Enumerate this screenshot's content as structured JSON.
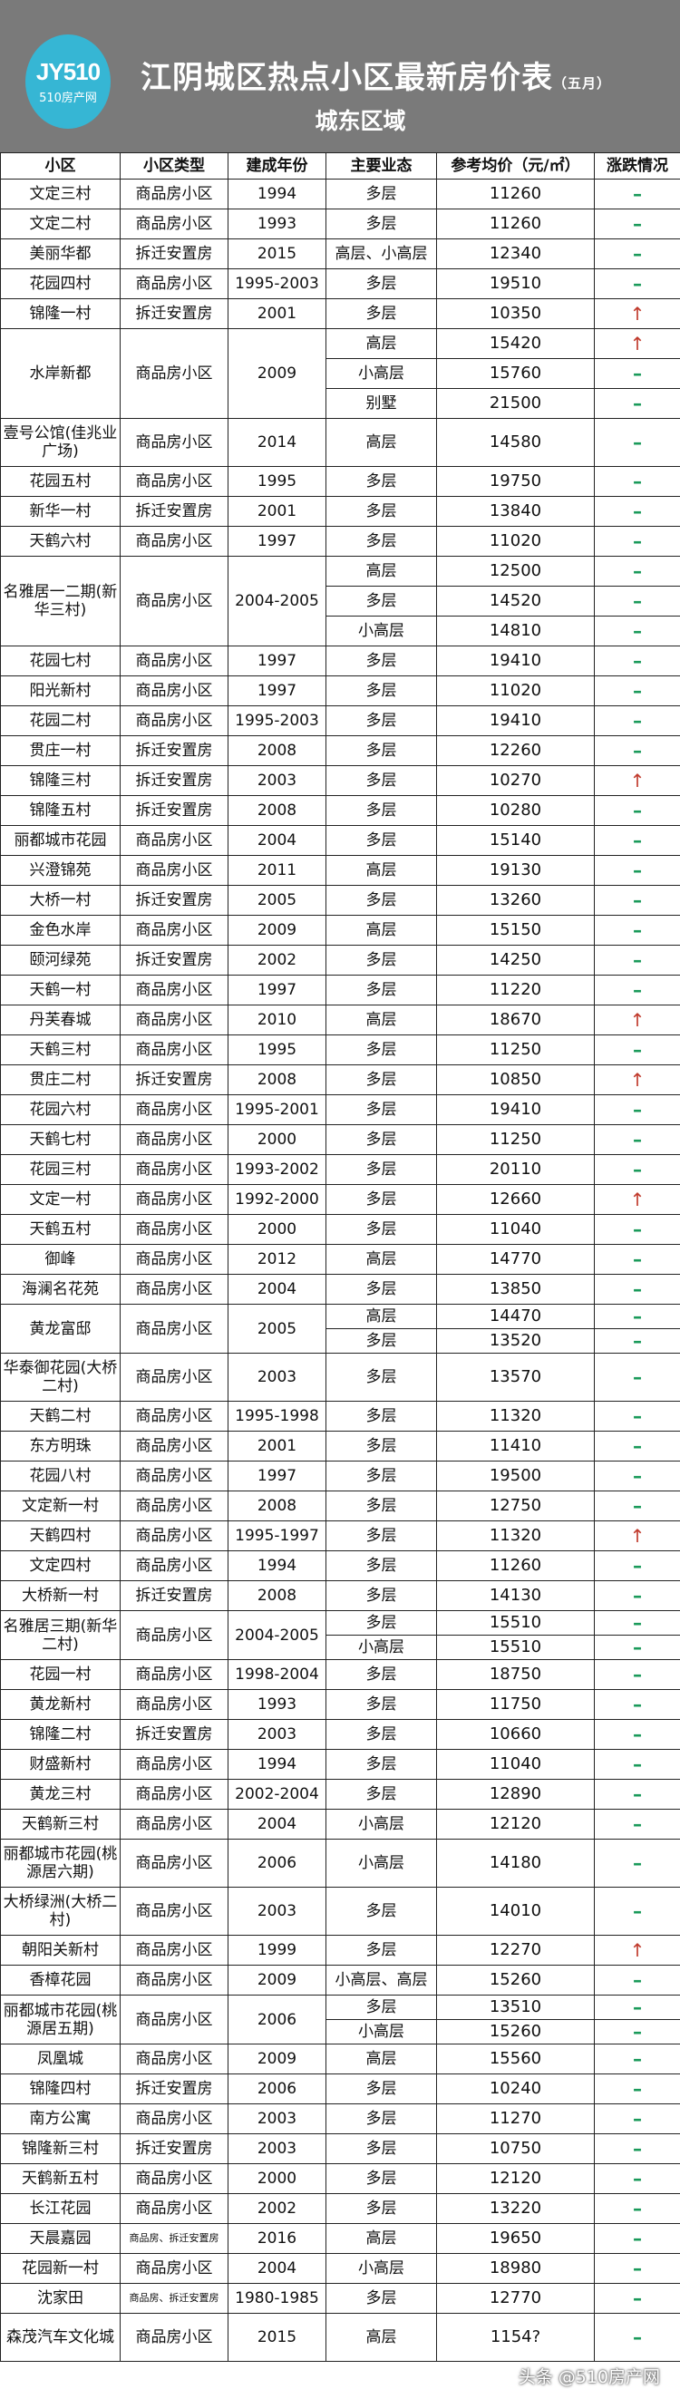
{
  "header": {
    "logo_mark": "JY510",
    "logo_text": "510房产网",
    "title": "江阴城区热点小区最新房价表",
    "title_suffix": "（五月）",
    "subtitle": "城东区域"
  },
  "colors": {
    "header_bg": "#7a7a7a",
    "logo_bg": "#36b6d4",
    "up": "#c0392b",
    "flat": "#1a9a5a"
  },
  "table": {
    "columns": [
      "小区",
      "小区类型",
      "建成年份",
      "主要业态",
      "参考均价（元/㎡）",
      "涨跌情况"
    ],
    "rows": [
      {
        "name": "文定三村",
        "type": "商品房小区",
        "year": "1994",
        "subs": [
          [
            "多层",
            "11260",
            "–"
          ]
        ]
      },
      {
        "name": "文定二村",
        "type": "商品房小区",
        "year": "1993",
        "subs": [
          [
            "多层",
            "11260",
            "–"
          ]
        ]
      },
      {
        "name": "美丽华都",
        "type": "拆迁安置房",
        "year": "2015",
        "subs": [
          [
            "高层、小高层",
            "12340",
            "–"
          ]
        ]
      },
      {
        "name": "花园四村",
        "type": "商品房小区",
        "year": "1995-2003",
        "subs": [
          [
            "多层",
            "19510",
            "–"
          ]
        ]
      },
      {
        "name": "锦隆一村",
        "type": "拆迁安置房",
        "year": "2001",
        "subs": [
          [
            "多层",
            "10350",
            "↑"
          ]
        ]
      },
      {
        "name": "水岸新都",
        "type": "商品房小区",
        "year": "2009",
        "subs": [
          [
            "高层",
            "15420",
            "↑"
          ],
          [
            "小高层",
            "15760",
            "–"
          ],
          [
            "别墅",
            "21500",
            "–"
          ]
        ]
      },
      {
        "name": "壹号公馆(佳兆业广场)",
        "type": "商品房小区",
        "year": "2014",
        "subs": [
          [
            "高层",
            "14580",
            "–"
          ]
        ]
      },
      {
        "name": "花园五村",
        "type": "商品房小区",
        "year": "1995",
        "subs": [
          [
            "多层",
            "19750",
            "–"
          ]
        ]
      },
      {
        "name": "新华一村",
        "type": "拆迁安置房",
        "year": "2001",
        "subs": [
          [
            "多层",
            "13840",
            "–"
          ]
        ]
      },
      {
        "name": "天鹤六村",
        "type": "商品房小区",
        "year": "1997",
        "subs": [
          [
            "多层",
            "11020",
            "–"
          ]
        ]
      },
      {
        "name": "名雅居一二期(新华三村)",
        "type": "商品房小区",
        "year": "2004-2005",
        "subs": [
          [
            "高层",
            "12500",
            "–"
          ],
          [
            "多层",
            "14520",
            "–"
          ],
          [
            "小高层",
            "14810",
            "–"
          ]
        ]
      },
      {
        "name": "花园七村",
        "type": "商品房小区",
        "year": "1997",
        "subs": [
          [
            "多层",
            "19410",
            "–"
          ]
        ]
      },
      {
        "name": "阳光新村",
        "type": "商品房小区",
        "year": "1997",
        "subs": [
          [
            "多层",
            "11020",
            "–"
          ]
        ]
      },
      {
        "name": "花园二村",
        "type": "商品房小区",
        "year": "1995-2003",
        "subs": [
          [
            "多层",
            "19410",
            "–"
          ]
        ]
      },
      {
        "name": "贯庄一村",
        "type": "拆迁安置房",
        "year": "2008",
        "subs": [
          [
            "多层",
            "12260",
            "–"
          ]
        ]
      },
      {
        "name": "锦隆三村",
        "type": "拆迁安置房",
        "year": "2003",
        "subs": [
          [
            "多层",
            "10270",
            "↑"
          ]
        ]
      },
      {
        "name": "锦隆五村",
        "type": "拆迁安置房",
        "year": "2008",
        "subs": [
          [
            "多层",
            "10280",
            "–"
          ]
        ]
      },
      {
        "name": "丽都城市花园",
        "type": "商品房小区",
        "year": "2004",
        "subs": [
          [
            "多层",
            "15140",
            "–"
          ]
        ]
      },
      {
        "name": "兴澄锦苑",
        "type": "商品房小区",
        "year": "2011",
        "subs": [
          [
            "高层",
            "19130",
            "–"
          ]
        ]
      },
      {
        "name": "大桥一村",
        "type": "拆迁安置房",
        "year": "2005",
        "subs": [
          [
            "多层",
            "13260",
            "–"
          ]
        ]
      },
      {
        "name": "金色水岸",
        "type": "商品房小区",
        "year": "2009",
        "subs": [
          [
            "高层",
            "15150",
            "–"
          ]
        ]
      },
      {
        "name": "颐河绿苑",
        "type": "拆迁安置房",
        "year": "2002",
        "subs": [
          [
            "多层",
            "14250",
            "–"
          ]
        ]
      },
      {
        "name": "天鹤一村",
        "type": "商品房小区",
        "year": "1997",
        "subs": [
          [
            "多层",
            "11220",
            "–"
          ]
        ]
      },
      {
        "name": "丹芙春城",
        "type": "商品房小区",
        "year": "2010",
        "subs": [
          [
            "高层",
            "18670",
            "↑"
          ]
        ]
      },
      {
        "name": "天鹤三村",
        "type": "商品房小区",
        "year": "1995",
        "subs": [
          [
            "多层",
            "11250",
            "–"
          ]
        ]
      },
      {
        "name": "贯庄二村",
        "type": "拆迁安置房",
        "year": "2008",
        "subs": [
          [
            "多层",
            "10850",
            "↑"
          ]
        ]
      },
      {
        "name": "花园六村",
        "type": "商品房小区",
        "year": "1995-2001",
        "subs": [
          [
            "多层",
            "19410",
            "–"
          ]
        ]
      },
      {
        "name": "天鹤七村",
        "type": "商品房小区",
        "year": "2000",
        "subs": [
          [
            "多层",
            "11250",
            "–"
          ]
        ]
      },
      {
        "name": "花园三村",
        "type": "商品房小区",
        "year": "1993-2002",
        "subs": [
          [
            "多层",
            "20110",
            "–"
          ]
        ]
      },
      {
        "name": "文定一村",
        "type": "商品房小区",
        "year": "1992-2000",
        "subs": [
          [
            "多层",
            "12660",
            "↑"
          ]
        ]
      },
      {
        "name": "天鹤五村",
        "type": "商品房小区",
        "year": "2000",
        "subs": [
          [
            "多层",
            "11040",
            "–"
          ]
        ]
      },
      {
        "name": "御峰",
        "type": "商品房小区",
        "year": "2012",
        "subs": [
          [
            "高层",
            "14770",
            "–"
          ]
        ]
      },
      {
        "name": "海澜名花苑",
        "type": "商品房小区",
        "year": "2004",
        "subs": [
          [
            "多层",
            "13850",
            "–"
          ]
        ]
      },
      {
        "name": "黄龙富邸",
        "type": "商品房小区",
        "year": "2005",
        "subs": [
          [
            "高层",
            "14470",
            "–"
          ],
          [
            "多层",
            "13520",
            "–"
          ]
        ]
      },
      {
        "name": "华泰御花园(大桥二村)",
        "type": "商品房小区",
        "year": "2003",
        "subs": [
          [
            "多层",
            "13570",
            "–"
          ]
        ]
      },
      {
        "name": "天鹤二村",
        "type": "商品房小区",
        "year": "1995-1998",
        "subs": [
          [
            "多层",
            "11320",
            "–"
          ]
        ]
      },
      {
        "name": "东方明珠",
        "type": "商品房小区",
        "year": "2001",
        "subs": [
          [
            "多层",
            "11410",
            "–"
          ]
        ]
      },
      {
        "name": "花园八村",
        "type": "商品房小区",
        "year": "1997",
        "subs": [
          [
            "多层",
            "19500",
            "–"
          ]
        ]
      },
      {
        "name": "文定新一村",
        "type": "商品房小区",
        "year": "2008",
        "subs": [
          [
            "多层",
            "12750",
            "–"
          ]
        ]
      },
      {
        "name": "天鹤四村",
        "type": "商品房小区",
        "year": "1995-1997",
        "subs": [
          [
            "多层",
            "11320",
            "↑"
          ]
        ]
      },
      {
        "name": "文定四村",
        "type": "商品房小区",
        "year": "1994",
        "subs": [
          [
            "多层",
            "11260",
            "–"
          ]
        ]
      },
      {
        "name": "大桥新一村",
        "type": "拆迁安置房",
        "year": "2008",
        "subs": [
          [
            "多层",
            "14130",
            "–"
          ]
        ]
      },
      {
        "name": "名雅居三期(新华二村)",
        "type": "商品房小区",
        "year": "2004-2005",
        "subs": [
          [
            "多层",
            "15510",
            "–"
          ],
          [
            "小高层",
            "15510",
            "–"
          ]
        ]
      },
      {
        "name": "花园一村",
        "type": "商品房小区",
        "year": "1998-2004",
        "subs": [
          [
            "多层",
            "18750",
            "–"
          ]
        ]
      },
      {
        "name": "黄龙新村",
        "type": "商品房小区",
        "year": "1993",
        "subs": [
          [
            "多层",
            "11750",
            "–"
          ]
        ]
      },
      {
        "name": "锦隆二村",
        "type": "拆迁安置房",
        "year": "2003",
        "subs": [
          [
            "多层",
            "10660",
            "–"
          ]
        ]
      },
      {
        "name": "财盛新村",
        "type": "商品房小区",
        "year": "1994",
        "subs": [
          [
            "多层",
            "11040",
            "–"
          ]
        ]
      },
      {
        "name": "黄龙三村",
        "type": "商品房小区",
        "year": "2002-2004",
        "subs": [
          [
            "多层",
            "12890",
            "–"
          ]
        ]
      },
      {
        "name": "天鹤新三村",
        "type": "商品房小区",
        "year": "2004",
        "subs": [
          [
            "小高层",
            "12120",
            "–"
          ]
        ]
      },
      {
        "name": "丽都城市花园(桃源居六期)",
        "type": "商品房小区",
        "year": "2006",
        "subs": [
          [
            "小高层",
            "14180",
            "–"
          ]
        ]
      },
      {
        "name": "大桥绿洲(大桥二村)",
        "type": "商品房小区",
        "year": "2003",
        "subs": [
          [
            "多层",
            "14010",
            "–"
          ]
        ]
      },
      {
        "name": "朝阳关新村",
        "type": "商品房小区",
        "year": "1999",
        "subs": [
          [
            "多层",
            "12270",
            "↑"
          ]
        ]
      },
      {
        "name": "香樟花园",
        "type": "商品房小区",
        "year": "2009",
        "subs": [
          [
            "小高层、高层",
            "15260",
            "–"
          ]
        ]
      },
      {
        "name": "丽都城市花园(桃源居五期)",
        "type": "商品房小区",
        "year": "2006",
        "subs": [
          [
            "多层",
            "13510",
            "–"
          ],
          [
            "小高层",
            "15260",
            "–"
          ]
        ]
      },
      {
        "name": "凤凰城",
        "type": "商品房小区",
        "year": "2009",
        "subs": [
          [
            "高层",
            "15560",
            "–"
          ]
        ]
      },
      {
        "name": "锦隆四村",
        "type": "拆迁安置房",
        "year": "2006",
        "subs": [
          [
            "多层",
            "10240",
            "–"
          ]
        ]
      },
      {
        "name": "南方公寓",
        "type": "商品房小区",
        "year": "2003",
        "subs": [
          [
            "多层",
            "11270",
            "–"
          ]
        ]
      },
      {
        "name": "锦隆新三村",
        "type": "拆迁安置房",
        "year": "2003",
        "subs": [
          [
            "多层",
            "10750",
            "–"
          ]
        ]
      },
      {
        "name": "天鹤新五村",
        "type": "商品房小区",
        "year": "2000",
        "subs": [
          [
            "多层",
            "12120",
            "–"
          ]
        ]
      },
      {
        "name": "长江花园",
        "type": "商品房小区",
        "year": "2002",
        "subs": [
          [
            "多层",
            "13220",
            "–"
          ]
        ]
      },
      {
        "name": "天晨嘉园",
        "type": "商品房、拆迁安置房",
        "year": "2016",
        "subs": [
          [
            "高层",
            "19650",
            "–"
          ]
        ]
      },
      {
        "name": "花园新一村",
        "type": "商品房小区",
        "year": "2004",
        "subs": [
          [
            "小高层",
            "18980",
            "–"
          ]
        ]
      },
      {
        "name": "沈家田",
        "type": "商品房、拆迁安置房",
        "year": "1980-1985",
        "subs": [
          [
            "多层",
            "12770",
            "–"
          ]
        ]
      },
      {
        "name": "森茂汽车文化城",
        "type": "商品房小区",
        "year": "2015",
        "subs": [
          [
            "高层",
            "1154?",
            "–"
          ]
        ]
      }
    ]
  },
  "watermark": "头条 @510房产网"
}
